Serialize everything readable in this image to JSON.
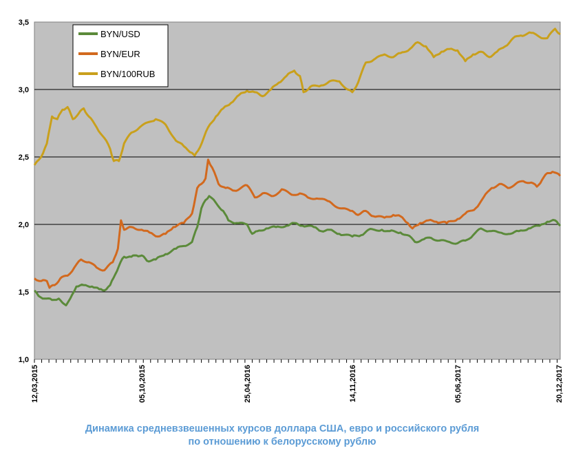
{
  "chart_data": {
    "type": "line",
    "title": "",
    "caption_line1": "Динамика средневзвешенных курсов доллара США, евро и российского рубля",
    "caption_line2": "по отношению к белорусскому рублю",
    "xlabel": "",
    "ylabel": "",
    "ylim": [
      1.0,
      3.5
    ],
    "yticks": [
      "1,0",
      "1,5",
      "2,0",
      "2,5",
      "3,0",
      "3,5"
    ],
    "ytick_values": [
      1.0,
      1.5,
      2.0,
      2.5,
      3.0,
      3.5
    ],
    "xlim": [
      "2015-03-12",
      "2017-12-20"
    ],
    "xtick_labels": [
      "12,03,2015",
      "05,10,2015",
      "25,04,2016",
      "14,11,2016",
      "05,06,2017",
      "20,12,2017"
    ],
    "xtick_dates": [
      "2015-03-12",
      "2015-10-05",
      "2016-04-25",
      "2016-11-14",
      "2017-06-05",
      "2017-12-20"
    ],
    "grid": "horizontal",
    "background": "#C0C0C0",
    "legend_position": "top-left",
    "series": [
      {
        "name": "BYN/USD",
        "color": "#5B8A3A",
        "points": [
          [
            "2015-03-12",
            1.51
          ],
          [
            "2015-03-20",
            1.47
          ],
          [
            "2015-04-01",
            1.45
          ],
          [
            "2015-04-15",
            1.44
          ],
          [
            "2015-04-28",
            1.45
          ],
          [
            "2015-05-05",
            1.42
          ],
          [
            "2015-05-12",
            1.4
          ],
          [
            "2015-05-20",
            1.45
          ],
          [
            "2015-06-01",
            1.54
          ],
          [
            "2015-06-15",
            1.55
          ],
          [
            "2015-07-01",
            1.54
          ],
          [
            "2015-07-15",
            1.52
          ],
          [
            "2015-07-25",
            1.51
          ],
          [
            "2015-08-05",
            1.55
          ],
          [
            "2015-08-15",
            1.63
          ],
          [
            "2015-08-25",
            1.72
          ],
          [
            "2015-09-01",
            1.76
          ],
          [
            "2015-09-15",
            1.76
          ],
          [
            "2015-09-25",
            1.77
          ],
          [
            "2015-10-05",
            1.77
          ],
          [
            "2015-10-15",
            1.73
          ],
          [
            "2015-11-01",
            1.74
          ],
          [
            "2015-11-20",
            1.78
          ],
          [
            "2015-12-10",
            1.82
          ],
          [
            "2015-12-25",
            1.84
          ],
          [
            "2016-01-10",
            1.87
          ],
          [
            "2016-01-20",
            1.98
          ],
          [
            "2016-01-28",
            2.12
          ],
          [
            "2016-02-05",
            2.18
          ],
          [
            "2016-02-12",
            2.21
          ],
          [
            "2016-02-25",
            2.16
          ],
          [
            "2016-03-10",
            2.1
          ],
          [
            "2016-03-20",
            2.03
          ],
          [
            "2016-04-05",
            2.01
          ],
          [
            "2016-04-25",
            2.0
          ],
          [
            "2016-05-05",
            1.93
          ],
          [
            "2016-05-15",
            1.95
          ],
          [
            "2016-06-01",
            1.97
          ],
          [
            "2016-06-20",
            1.98
          ],
          [
            "2016-07-10",
            1.99
          ],
          [
            "2016-07-25",
            2.01
          ],
          [
            "2016-08-10",
            1.99
          ],
          [
            "2016-09-01",
            1.98
          ],
          [
            "2016-09-15",
            1.95
          ],
          [
            "2016-10-01",
            1.96
          ],
          [
            "2016-10-20",
            1.93
          ],
          [
            "2016-11-14",
            1.91
          ],
          [
            "2016-12-01",
            1.92
          ],
          [
            "2016-12-15",
            1.96
          ],
          [
            "2017-01-10",
            1.96
          ],
          [
            "2017-01-25",
            1.95
          ],
          [
            "2017-02-15",
            1.94
          ],
          [
            "2017-03-01",
            1.92
          ],
          [
            "2017-03-15",
            1.87
          ],
          [
            "2017-04-01",
            1.89
          ],
          [
            "2017-04-15",
            1.9
          ],
          [
            "2017-05-01",
            1.88
          ],
          [
            "2017-05-20",
            1.87
          ],
          [
            "2017-06-05",
            1.86
          ],
          [
            "2017-06-20",
            1.88
          ],
          [
            "2017-07-05",
            1.92
          ],
          [
            "2017-07-20",
            1.97
          ],
          [
            "2017-08-05",
            1.95
          ],
          [
            "2017-08-25",
            1.94
          ],
          [
            "2017-09-15",
            1.93
          ],
          [
            "2017-10-01",
            1.95
          ],
          [
            "2017-10-20",
            1.97
          ],
          [
            "2017-11-10",
            1.99
          ],
          [
            "2017-11-25",
            2.02
          ],
          [
            "2017-12-10",
            2.03
          ],
          [
            "2017-12-20",
            1.99
          ]
        ]
      },
      {
        "name": "BYN/EUR",
        "color": "#D2691E",
        "points": [
          [
            "2015-03-12",
            1.6
          ],
          [
            "2015-03-25",
            1.58
          ],
          [
            "2015-04-05",
            1.58
          ],
          [
            "2015-04-10",
            1.53
          ],
          [
            "2015-04-20",
            1.55
          ],
          [
            "2015-05-01",
            1.6
          ],
          [
            "2015-05-15",
            1.62
          ],
          [
            "2015-05-28",
            1.68
          ],
          [
            "2015-06-10",
            1.74
          ],
          [
            "2015-06-25",
            1.72
          ],
          [
            "2015-07-10",
            1.68
          ],
          [
            "2015-07-25",
            1.66
          ],
          [
            "2015-08-10",
            1.72
          ],
          [
            "2015-08-20",
            1.82
          ],
          [
            "2015-08-26",
            2.03
          ],
          [
            "2015-09-01",
            1.96
          ],
          [
            "2015-09-15",
            1.98
          ],
          [
            "2015-10-05",
            1.96
          ],
          [
            "2015-10-20",
            1.94
          ],
          [
            "2015-11-05",
            1.91
          ],
          [
            "2015-11-20",
            1.93
          ],
          [
            "2015-12-05",
            1.98
          ],
          [
            "2015-12-25",
            2.01
          ],
          [
            "2016-01-10",
            2.08
          ],
          [
            "2016-01-20",
            2.27
          ],
          [
            "2016-01-28",
            2.3
          ],
          [
            "2016-02-05",
            2.34
          ],
          [
            "2016-02-10",
            2.48
          ],
          [
            "2016-02-18",
            2.42
          ],
          [
            "2016-03-01",
            2.3
          ],
          [
            "2016-03-15",
            2.27
          ],
          [
            "2016-04-01",
            2.25
          ],
          [
            "2016-04-25",
            2.29
          ],
          [
            "2016-05-10",
            2.2
          ],
          [
            "2016-05-25",
            2.23
          ],
          [
            "2016-06-15",
            2.21
          ],
          [
            "2016-07-01",
            2.26
          ],
          [
            "2016-07-20",
            2.22
          ],
          [
            "2016-08-05",
            2.23
          ],
          [
            "2016-08-20",
            2.2
          ],
          [
            "2016-09-10",
            2.19
          ],
          [
            "2016-10-01",
            2.17
          ],
          [
            "2016-10-20",
            2.12
          ],
          [
            "2016-11-14",
            2.1
          ],
          [
            "2016-11-25",
            2.07
          ],
          [
            "2016-12-10",
            2.1
          ],
          [
            "2016-12-25",
            2.06
          ],
          [
            "2017-01-15",
            2.05
          ],
          [
            "2017-02-01",
            2.07
          ],
          [
            "2017-02-15",
            2.06
          ],
          [
            "2017-03-01",
            2.01
          ],
          [
            "2017-03-10",
            1.97
          ],
          [
            "2017-03-25",
            2.01
          ],
          [
            "2017-04-10",
            2.03
          ],
          [
            "2017-04-25",
            2.02
          ],
          [
            "2017-05-15",
            2.01
          ],
          [
            "2017-06-05",
            2.04
          ],
          [
            "2017-06-20",
            2.08
          ],
          [
            "2017-07-10",
            2.12
          ],
          [
            "2017-07-25",
            2.2
          ],
          [
            "2017-08-10",
            2.27
          ],
          [
            "2017-08-25",
            2.3
          ],
          [
            "2017-09-10",
            2.27
          ],
          [
            "2017-09-25",
            2.3
          ],
          [
            "2017-10-10",
            2.32
          ],
          [
            "2017-10-25",
            2.31
          ],
          [
            "2017-11-05",
            2.28
          ],
          [
            "2017-11-15",
            2.33
          ],
          [
            "2017-11-25",
            2.38
          ],
          [
            "2017-12-05",
            2.39
          ],
          [
            "2017-12-20",
            2.36
          ]
        ]
      },
      {
        "name": "BYN/100RUB",
        "color": "#C9A01C",
        "points": [
          [
            "2015-03-12",
            2.44
          ],
          [
            "2015-03-25",
            2.5
          ],
          [
            "2015-04-05",
            2.6
          ],
          [
            "2015-04-15",
            2.8
          ],
          [
            "2015-04-25",
            2.78
          ],
          [
            "2015-05-05",
            2.85
          ],
          [
            "2015-05-15",
            2.87
          ],
          [
            "2015-05-25",
            2.78
          ],
          [
            "2015-06-05",
            2.82
          ],
          [
            "2015-06-15",
            2.86
          ],
          [
            "2015-06-25",
            2.8
          ],
          [
            "2015-07-10",
            2.72
          ],
          [
            "2015-07-25",
            2.64
          ],
          [
            "2015-08-05",
            2.56
          ],
          [
            "2015-08-12",
            2.47
          ],
          [
            "2015-08-22",
            2.47
          ],
          [
            "2015-09-01",
            2.6
          ],
          [
            "2015-09-15",
            2.68
          ],
          [
            "2015-10-01",
            2.72
          ],
          [
            "2015-10-20",
            2.76
          ],
          [
            "2015-11-01",
            2.78
          ],
          [
            "2015-11-20",
            2.74
          ],
          [
            "2015-12-10",
            2.62
          ],
          [
            "2015-12-25",
            2.58
          ],
          [
            "2016-01-10",
            2.53
          ],
          [
            "2016-01-15",
            2.51
          ],
          [
            "2016-01-25",
            2.57
          ],
          [
            "2016-02-10",
            2.72
          ],
          [
            "2016-02-25",
            2.8
          ],
          [
            "2016-03-10",
            2.86
          ],
          [
            "2016-03-25",
            2.9
          ],
          [
            "2016-04-10",
            2.96
          ],
          [
            "2016-04-25",
            2.99
          ],
          [
            "2016-05-10",
            2.98
          ],
          [
            "2016-05-25",
            2.95
          ],
          [
            "2016-06-10",
            3.0
          ],
          [
            "2016-06-25",
            3.05
          ],
          [
            "2016-07-10",
            3.1
          ],
          [
            "2016-07-25",
            3.14
          ],
          [
            "2016-08-05",
            3.1
          ],
          [
            "2016-08-12",
            2.98
          ],
          [
            "2016-08-25",
            3.02
          ],
          [
            "2016-09-15",
            3.03
          ],
          [
            "2016-10-01",
            3.06
          ],
          [
            "2016-10-20",
            3.06
          ],
          [
            "2016-11-05",
            3.0
          ],
          [
            "2016-11-14",
            2.98
          ],
          [
            "2016-11-25",
            3.05
          ],
          [
            "2016-12-10",
            3.2
          ],
          [
            "2016-12-25",
            3.22
          ],
          [
            "2017-01-15",
            3.26
          ],
          [
            "2017-02-01",
            3.24
          ],
          [
            "2017-02-15",
            3.27
          ],
          [
            "2017-03-05",
            3.3
          ],
          [
            "2017-03-20",
            3.35
          ],
          [
            "2017-04-05",
            3.32
          ],
          [
            "2017-04-20",
            3.24
          ],
          [
            "2017-05-05",
            3.28
          ],
          [
            "2017-05-20",
            3.3
          ],
          [
            "2017-06-05",
            3.29
          ],
          [
            "2017-06-20",
            3.21
          ],
          [
            "2017-07-05",
            3.26
          ],
          [
            "2017-07-20",
            3.28
          ],
          [
            "2017-08-05",
            3.24
          ],
          [
            "2017-08-20",
            3.28
          ],
          [
            "2017-09-05",
            3.32
          ],
          [
            "2017-09-20",
            3.38
          ],
          [
            "2017-10-05",
            3.4
          ],
          [
            "2017-10-25",
            3.42
          ],
          [
            "2017-11-10",
            3.39
          ],
          [
            "2017-11-25",
            3.38
          ],
          [
            "2017-12-10",
            3.45
          ],
          [
            "2017-12-20",
            3.41
          ]
        ]
      }
    ]
  }
}
